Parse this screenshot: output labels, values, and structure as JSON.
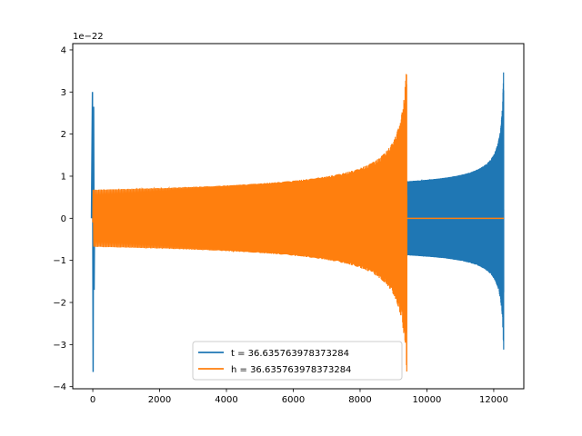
{
  "chart_data": {
    "type": "line",
    "title": "",
    "xlabel": "",
    "ylabel": "",
    "y_offset_label": "1e−22",
    "xlim": [
      -600,
      12900
    ],
    "ylim": [
      -4.05,
      4.15
    ],
    "x_ticks": [
      0,
      2000,
      4000,
      6000,
      8000,
      10000,
      12000
    ],
    "x_tick_labels": [
      "0",
      "2000",
      "4000",
      "6000",
      "8000",
      "10000",
      "12000"
    ],
    "y_ticks": [
      -4,
      -3,
      -2,
      -1,
      0,
      1,
      2,
      3,
      4
    ],
    "y_tick_labels": [
      "−4",
      "−3",
      "−2",
      "−1",
      "0",
      "1",
      "2",
      "3",
      "4"
    ],
    "grid": false,
    "legend_position": "lower-center",
    "series": [
      {
        "name": "t = 36.635763978373284",
        "color": "#1f77b4",
        "description_points": [
          {
            "x": 0,
            "y": 3.0
          },
          {
            "x": 0,
            "y": -3.65
          },
          {
            "x": 9400,
            "y": 0.88
          },
          {
            "x": 9400,
            "y": -0.88
          },
          {
            "x": 12270,
            "y": 3.75
          },
          {
            "x": 12270,
            "y": -3.35
          }
        ],
        "segments": [
          {
            "x_start": -50,
            "x_end": 60,
            "peak_y": 3.0,
            "trough_y": -3.65,
            "kind": "burst"
          },
          {
            "x_start": 60,
            "x_end": 9380,
            "value": 0.0,
            "kind": "flat_under_orange"
          },
          {
            "x_start": 9400,
            "x_end": 12300,
            "start_amplitude": 0.88,
            "end_amplitude_pos": 3.75,
            "end_amplitude_neg": -3.35,
            "kind": "chirp"
          }
        ]
      },
      {
        "name": "h = 36.635763978373284",
        "color": "#ff7f0e",
        "segments": [
          {
            "x_start": 0,
            "x_end": 9400,
            "start_amplitude": 0.68,
            "end_amplitude_pos": 3.75,
            "end_amplitude_neg": -3.68,
            "kind": "chirp"
          },
          {
            "x_start": 9400,
            "x_end": 12300,
            "value": 0.0,
            "kind": "flat"
          }
        ]
      }
    ]
  }
}
